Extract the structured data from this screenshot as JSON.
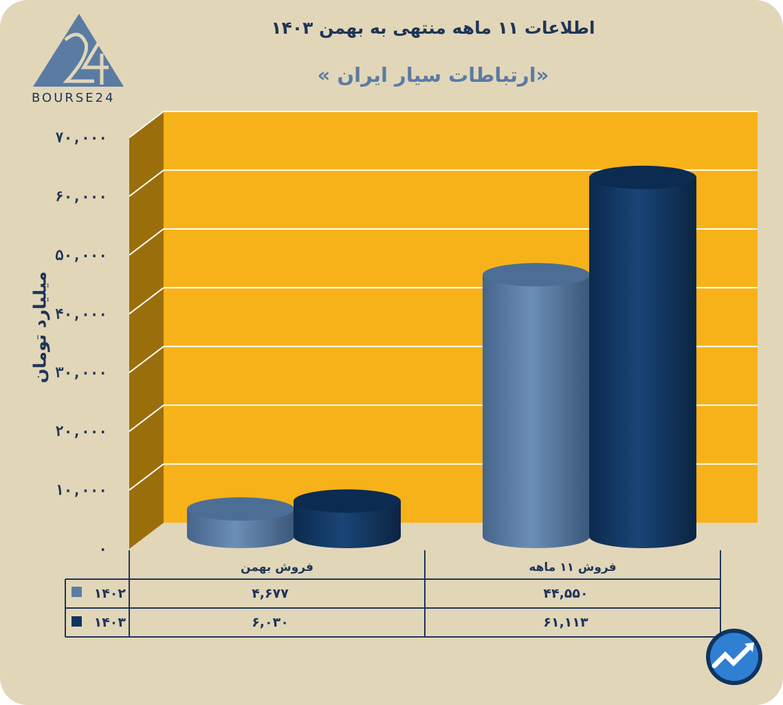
{
  "brand": {
    "logo_text": "BOURSE24"
  },
  "colors": {
    "background": "#e2d6b9",
    "plot": "#f7b21a",
    "wall": "#9b6e0c",
    "series_1402": "#5a7ca3",
    "series_1403": "#0f3460",
    "text": "#1d3557"
  },
  "chart_data": {
    "type": "bar",
    "title": "اطلاعات ۱۱ ماهه منتهی به بهمن ۱۴۰۳",
    "subtitle": "«ارتباطات سیار ایران »",
    "ylabel": "میلیارد تومان",
    "xlabel": "",
    "ylim": [
      0,
      70000
    ],
    "yticks": [
      "۷۰,۰۰۰",
      "۶۰,۰۰۰",
      "۵۰,۰۰۰",
      "۴۰,۰۰۰",
      "۳۰,۰۰۰",
      "۲۰,۰۰۰",
      "۱۰,۰۰۰",
      "۰"
    ],
    "ytick_values": [
      70000,
      60000,
      50000,
      40000,
      30000,
      20000,
      10000,
      0
    ],
    "categories": [
      "فروش بهمن",
      "فروش ۱۱ ماهه"
    ],
    "series": [
      {
        "name": "۱۴۰۲",
        "values": [
          4677,
          44550
        ],
        "labels": [
          "۴,۶۷۷",
          "۴۴,۵۵۰"
        ],
        "color": "#5a7ca3"
      },
      {
        "name": "۱۴۰۳",
        "values": [
          6030,
          61113
        ],
        "labels": [
          "۶,۰۳۰",
          "۶۱,۱۱۳"
        ],
        "color": "#0f3460"
      }
    ],
    "grid": true,
    "legend": "bottom-table"
  }
}
